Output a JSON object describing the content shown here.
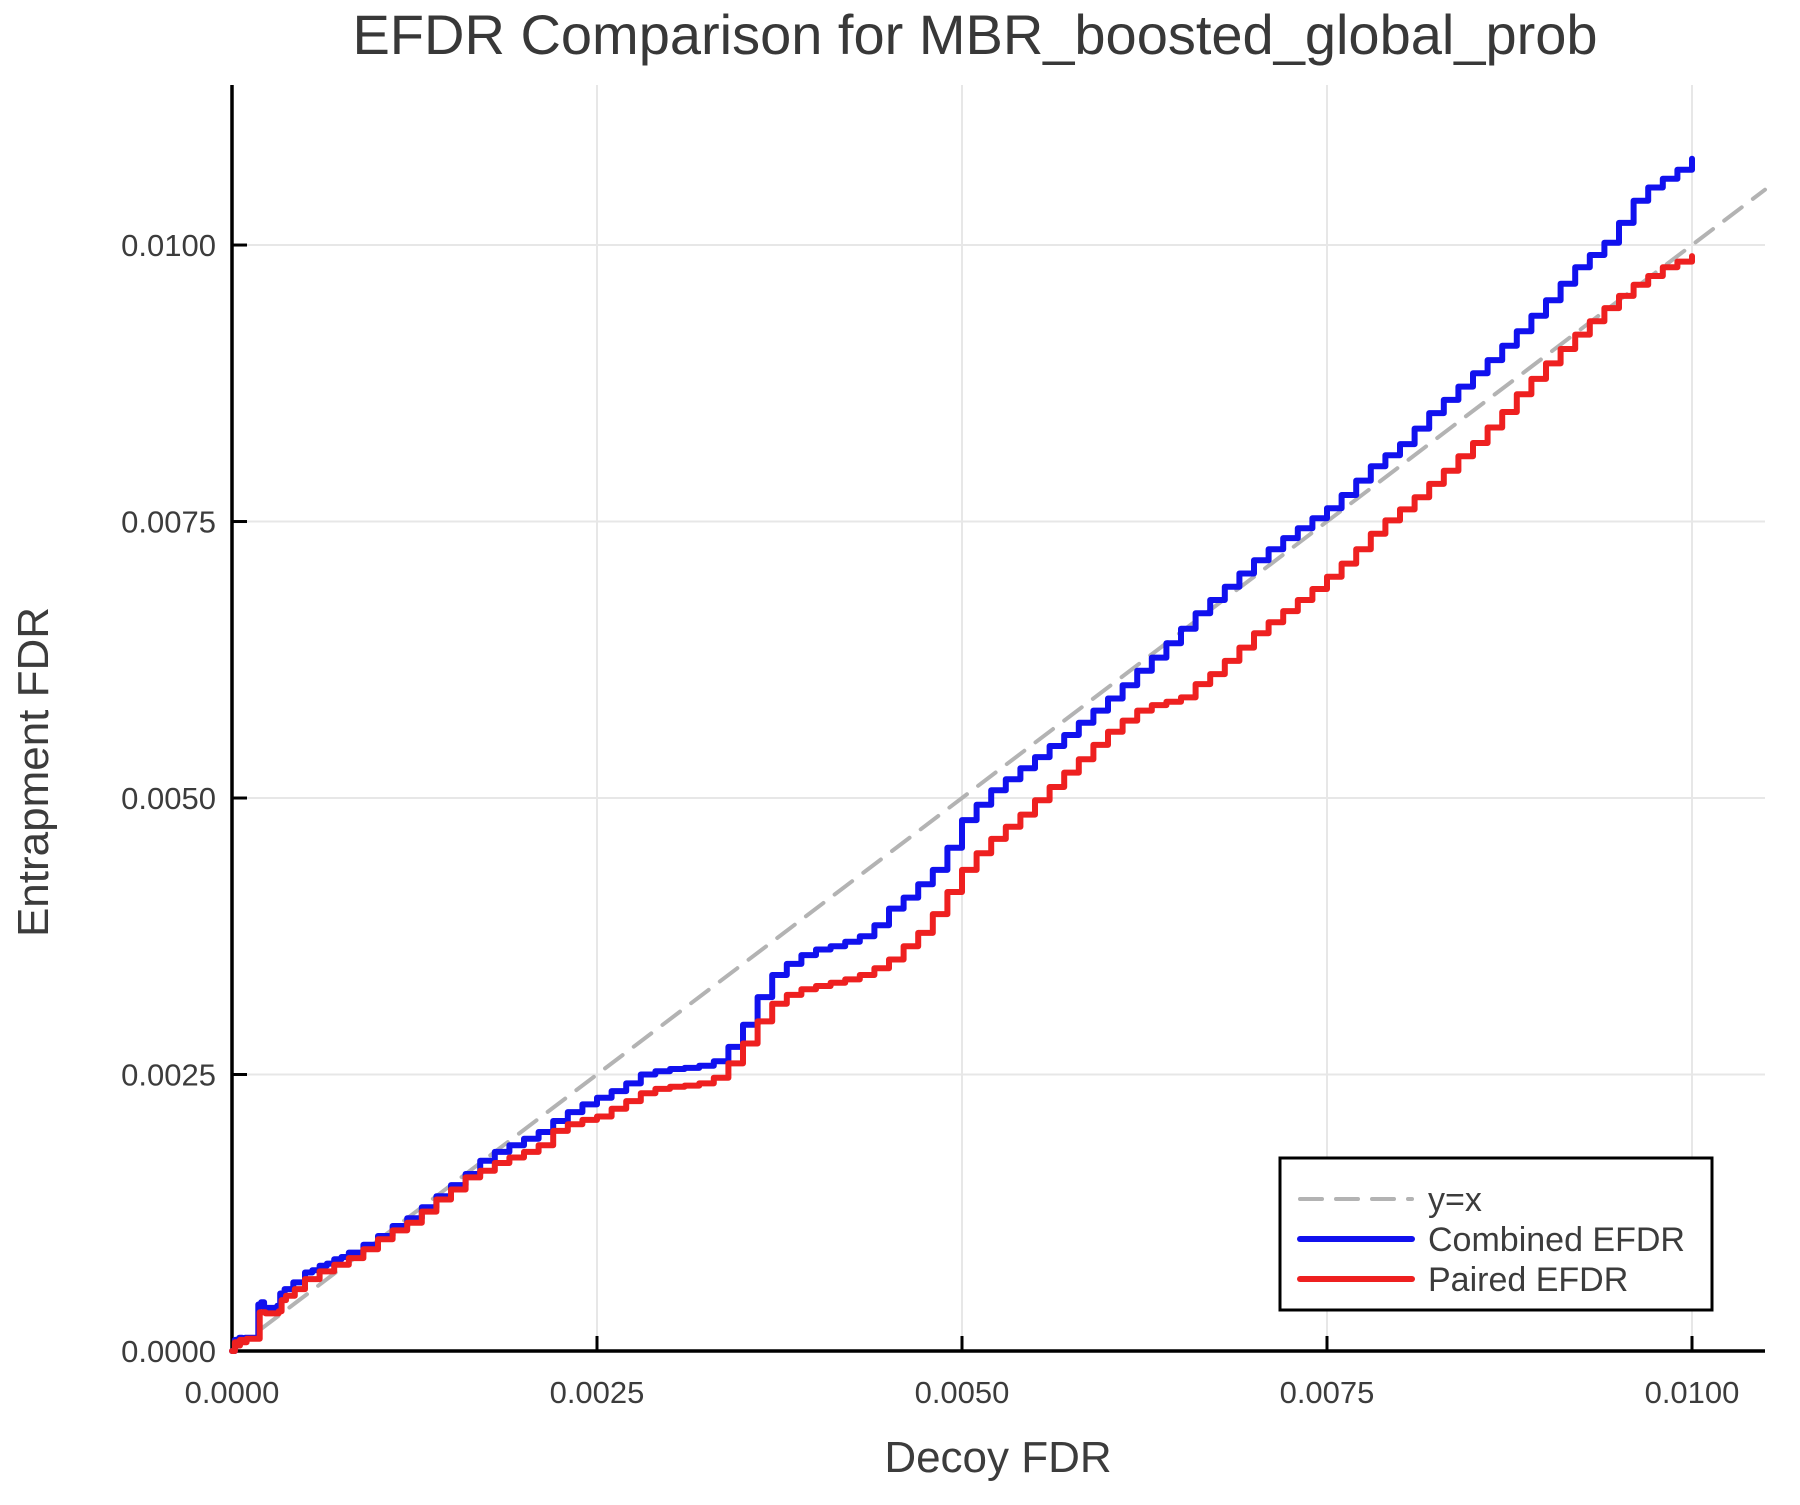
{
  "title": "EFDR Comparison for MBR_boosted_global_prob",
  "colors": {
    "combined": "#1111ee",
    "paired": "#ee2020",
    "identity": "#b3b3b3",
    "grid": "#e7e7e7",
    "axis": "#000000",
    "text": "#3c3c3c"
  },
  "chart_data": {
    "type": "line",
    "title": "EFDR Comparison for MBR_boosted_global_prob",
    "xlabel": "Decoy FDR",
    "ylabel": "Entrapment FDR",
    "xlim": [
      0,
      0.0105
    ],
    "ylim": [
      0,
      0.011447
    ],
    "grid": true,
    "legend_position": "bottom-right",
    "xticks": [
      {
        "value": 0.0,
        "label": "0.0000"
      },
      {
        "value": 0.0025,
        "label": "0.0025"
      },
      {
        "value": 0.005,
        "label": "0.0050"
      },
      {
        "value": 0.0075,
        "label": "0.0075"
      },
      {
        "value": 0.01,
        "label": "0.0100"
      }
    ],
    "yticks": [
      {
        "value": 0.0,
        "label": "0.0000"
      },
      {
        "value": 0.0025,
        "label": "0.0025"
      },
      {
        "value": 0.005,
        "label": "0.0050"
      },
      {
        "value": 0.0075,
        "label": "0.0075"
      },
      {
        "value": 0.01,
        "label": "0.0100"
      }
    ],
    "series": [
      {
        "name": "y=x",
        "color": "#b3b3b3",
        "width": 4,
        "dash": "22 14",
        "interpolation": "linear",
        "points": [
          [
            0,
            0
          ],
          [
            0.0105,
            0.0105
          ]
        ]
      },
      {
        "name": "Combined EFDR",
        "color": "#1111ee",
        "width": 6,
        "dash": "",
        "interpolation": "step",
        "points": [
          [
            0.0,
            0.0
          ],
          [
            2e-05,
            0.0001
          ],
          [
            3e-05,
            7e-05
          ],
          [
            5e-05,
            0.00012
          ],
          [
            7e-05,
            9e-05
          ],
          [
            9e-05,
            0.00012
          ],
          [
            0.00017,
            0.00012
          ],
          [
            0.00018,
            0.00042
          ],
          [
            0.0002,
            0.00044
          ],
          [
            0.00022,
            0.00039
          ],
          [
            0.00031,
            0.00041
          ],
          [
            0.00033,
            0.00052
          ],
          [
            0.00036,
            0.00056
          ],
          [
            0.00042,
            0.00062
          ],
          [
            0.0005,
            0.00071
          ],
          [
            0.00055,
            0.00073
          ],
          [
            0.0006,
            0.00077
          ],
          [
            0.00065,
            0.00079
          ],
          [
            0.0007,
            0.00083
          ],
          [
            0.00075,
            0.00085
          ],
          [
            0.0008,
            0.00089
          ],
          [
            0.0009,
            0.00096
          ],
          [
            0.001,
            0.00104
          ],
          [
            0.0011,
            0.00113
          ],
          [
            0.0012,
            0.0012
          ],
          [
            0.0013,
            0.0013
          ],
          [
            0.0014,
            0.0014
          ],
          [
            0.0015,
            0.0015
          ],
          [
            0.0016,
            0.0016
          ],
          [
            0.0017,
            0.00172
          ],
          [
            0.0018,
            0.0018
          ],
          [
            0.0019,
            0.00186
          ],
          [
            0.002,
            0.00192
          ],
          [
            0.0021,
            0.00198
          ],
          [
            0.0022,
            0.00208
          ],
          [
            0.0023,
            0.00216
          ],
          [
            0.0024,
            0.00223
          ],
          [
            0.0025,
            0.00229
          ],
          [
            0.0026,
            0.00235
          ],
          [
            0.0027,
            0.00242
          ],
          [
            0.0028,
            0.0025
          ],
          [
            0.0029,
            0.00253
          ],
          [
            0.003,
            0.00255
          ],
          [
            0.0031,
            0.00256
          ],
          [
            0.0032,
            0.00258
          ],
          [
            0.0033,
            0.00262
          ],
          [
            0.0034,
            0.00275
          ],
          [
            0.0035,
            0.00295
          ],
          [
            0.0036,
            0.0032
          ],
          [
            0.0037,
            0.0034
          ],
          [
            0.0038,
            0.0035
          ],
          [
            0.0039,
            0.00358
          ],
          [
            0.004,
            0.00363
          ],
          [
            0.0041,
            0.00366
          ],
          [
            0.0042,
            0.0037
          ],
          [
            0.0043,
            0.00375
          ],
          [
            0.0044,
            0.00385
          ],
          [
            0.0045,
            0.004
          ],
          [
            0.0046,
            0.0041
          ],
          [
            0.0047,
            0.00422
          ],
          [
            0.0048,
            0.00435
          ],
          [
            0.0049,
            0.00455
          ],
          [
            0.005,
            0.0048
          ],
          [
            0.0051,
            0.00494
          ],
          [
            0.0052,
            0.00507
          ],
          [
            0.0053,
            0.00517
          ],
          [
            0.0054,
            0.00527
          ],
          [
            0.0055,
            0.00537
          ],
          [
            0.0056,
            0.00547
          ],
          [
            0.0057,
            0.00557
          ],
          [
            0.0058,
            0.00568
          ],
          [
            0.0059,
            0.00579
          ],
          [
            0.006,
            0.0059
          ],
          [
            0.0061,
            0.00602
          ],
          [
            0.0062,
            0.00615
          ],
          [
            0.0063,
            0.00627
          ],
          [
            0.0064,
            0.0064
          ],
          [
            0.0065,
            0.00653
          ],
          [
            0.0066,
            0.00667
          ],
          [
            0.0067,
            0.00679
          ],
          [
            0.0068,
            0.00691
          ],
          [
            0.0069,
            0.00703
          ],
          [
            0.007,
            0.00715
          ],
          [
            0.0071,
            0.00725
          ],
          [
            0.0072,
            0.00735
          ],
          [
            0.0073,
            0.00744
          ],
          [
            0.0074,
            0.00753
          ],
          [
            0.0075,
            0.00762
          ],
          [
            0.0076,
            0.00774
          ],
          [
            0.0077,
            0.00787
          ],
          [
            0.0078,
            0.008
          ],
          [
            0.0079,
            0.0081
          ],
          [
            0.008,
            0.0082
          ],
          [
            0.0081,
            0.00834
          ],
          [
            0.0082,
            0.00848
          ],
          [
            0.0083,
            0.0086
          ],
          [
            0.0084,
            0.00872
          ],
          [
            0.0085,
            0.00884
          ],
          [
            0.0086,
            0.00896
          ],
          [
            0.0087,
            0.00909
          ],
          [
            0.0088,
            0.00922
          ],
          [
            0.0089,
            0.00936
          ],
          [
            0.009,
            0.0095
          ],
          [
            0.0091,
            0.00965
          ],
          [
            0.0092,
            0.0098
          ],
          [
            0.0093,
            0.00991
          ],
          [
            0.0094,
            0.01002
          ],
          [
            0.0095,
            0.0102
          ],
          [
            0.0096,
            0.0104
          ],
          [
            0.0097,
            0.01052
          ],
          [
            0.0098,
            0.0106
          ],
          [
            0.0099,
            0.01068
          ],
          [
            0.01,
            0.01078
          ]
        ]
      },
      {
        "name": "Paired EFDR",
        "color": "#ee2020",
        "width": 6,
        "dash": "",
        "interpolation": "step",
        "points": [
          [
            0.0,
            0.0
          ],
          [
            2e-05,
            8e-05
          ],
          [
            3.5e-05,
            5e-05
          ],
          [
            5.5e-05,
            0.0001
          ],
          [
            7.5e-05,
            8e-05
          ],
          [
            0.0001,
            0.00011
          ],
          [
            0.00018,
            0.00011
          ],
          [
            0.00019,
            0.00035
          ],
          [
            0.00023,
            0.00034
          ],
          [
            0.00032,
            0.00036
          ],
          [
            0.00034,
            0.00046
          ],
          [
            0.00037,
            0.0005
          ],
          [
            0.00043,
            0.00056
          ],
          [
            0.0005,
            0.00065
          ],
          [
            0.0006,
            0.00072
          ],
          [
            0.0007,
            0.00078
          ],
          [
            0.0008,
            0.00084
          ],
          [
            0.0009,
            0.00092
          ],
          [
            0.001,
            0.00101
          ],
          [
            0.0011,
            0.00109
          ],
          [
            0.0012,
            0.00116
          ],
          [
            0.0013,
            0.00126
          ],
          [
            0.0014,
            0.00137
          ],
          [
            0.0015,
            0.00146
          ],
          [
            0.0016,
            0.00157
          ],
          [
            0.0017,
            0.00163
          ],
          [
            0.0018,
            0.0017
          ],
          [
            0.0019,
            0.00175
          ],
          [
            0.002,
            0.0018
          ],
          [
            0.0021,
            0.00186
          ],
          [
            0.0022,
            0.00199
          ],
          [
            0.0023,
            0.00205
          ],
          [
            0.0024,
            0.00209
          ],
          [
            0.0025,
            0.00212
          ],
          [
            0.0026,
            0.00219
          ],
          [
            0.0027,
            0.00226
          ],
          [
            0.0028,
            0.00233
          ],
          [
            0.0029,
            0.00237
          ],
          [
            0.003,
            0.00239
          ],
          [
            0.0031,
            0.0024
          ],
          [
            0.0032,
            0.00242
          ],
          [
            0.0033,
            0.00247
          ],
          [
            0.0034,
            0.0026
          ],
          [
            0.0035,
            0.00278
          ],
          [
            0.0036,
            0.00298
          ],
          [
            0.0037,
            0.00314
          ],
          [
            0.0038,
            0.00322
          ],
          [
            0.0039,
            0.00327
          ],
          [
            0.004,
            0.0033
          ],
          [
            0.0041,
            0.00333
          ],
          [
            0.0042,
            0.00336
          ],
          [
            0.0043,
            0.0034
          ],
          [
            0.0044,
            0.00346
          ],
          [
            0.0045,
            0.00354
          ],
          [
            0.0046,
            0.00366
          ],
          [
            0.0047,
            0.00378
          ],
          [
            0.0048,
            0.00395
          ],
          [
            0.0049,
            0.00415
          ],
          [
            0.005,
            0.00435
          ],
          [
            0.0051,
            0.0045
          ],
          [
            0.0052,
            0.00463
          ],
          [
            0.0053,
            0.00474
          ],
          [
            0.0054,
            0.00485
          ],
          [
            0.0055,
            0.00498
          ],
          [
            0.0056,
            0.0051
          ],
          [
            0.0057,
            0.00523
          ],
          [
            0.0058,
            0.00535
          ],
          [
            0.0059,
            0.00548
          ],
          [
            0.006,
            0.0056
          ],
          [
            0.0061,
            0.0057
          ],
          [
            0.0062,
            0.00579
          ],
          [
            0.0063,
            0.00584
          ],
          [
            0.0064,
            0.00587
          ],
          [
            0.0065,
            0.00591
          ],
          [
            0.0066,
            0.00603
          ],
          [
            0.0067,
            0.00612
          ],
          [
            0.0068,
            0.00624
          ],
          [
            0.0069,
            0.00636
          ],
          [
            0.007,
            0.00649
          ],
          [
            0.0071,
            0.00659
          ],
          [
            0.0072,
            0.00669
          ],
          [
            0.0073,
            0.00679
          ],
          [
            0.0074,
            0.00689
          ],
          [
            0.0075,
            0.007
          ],
          [
            0.0076,
            0.00712
          ],
          [
            0.0077,
            0.00725
          ],
          [
            0.0078,
            0.00739
          ],
          [
            0.0079,
            0.00751
          ],
          [
            0.008,
            0.00761
          ],
          [
            0.0081,
            0.00772
          ],
          [
            0.0082,
            0.00784
          ],
          [
            0.0083,
            0.00796
          ],
          [
            0.0084,
            0.00809
          ],
          [
            0.0085,
            0.00821
          ],
          [
            0.0086,
            0.00835
          ],
          [
            0.0087,
            0.00849
          ],
          [
            0.0088,
            0.00865
          ],
          [
            0.0089,
            0.00879
          ],
          [
            0.009,
            0.00893
          ],
          [
            0.0091,
            0.00906
          ],
          [
            0.0092,
            0.00919
          ],
          [
            0.0093,
            0.00931
          ],
          [
            0.0094,
            0.00943
          ],
          [
            0.0095,
            0.00954
          ],
          [
            0.0096,
            0.00964
          ],
          [
            0.0097,
            0.00972
          ],
          [
            0.0098,
            0.0098
          ],
          [
            0.0099,
            0.00985
          ],
          [
            0.01,
            0.0099
          ]
        ]
      }
    ]
  }
}
